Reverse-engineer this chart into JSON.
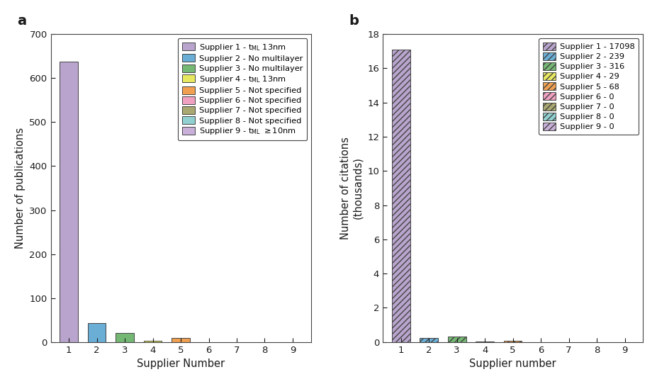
{
  "panel_a": {
    "values": [
      638,
      43,
      20,
      3,
      9,
      0,
      0,
      0,
      0
    ],
    "colors": [
      "#b8a4cc",
      "#6aaed6",
      "#74b874",
      "#e8e860",
      "#f0a050",
      "#f0a0c0",
      "#a8a870",
      "#90d0d0",
      "#c8b0d8"
    ],
    "xlabel": "Supplier Number",
    "ylabel": "Number of publications",
    "ylim": [
      0,
      700
    ],
    "yticks": [
      0,
      100,
      200,
      300,
      400,
      500,
      600,
      700
    ],
    "panel_label": "a"
  },
  "panel_b": {
    "values": [
      17.098,
      0.239,
      0.316,
      0.029,
      0.068,
      0,
      0,
      0,
      0
    ],
    "colors": [
      "#b8a4cc",
      "#6aaed6",
      "#74b874",
      "#e8e860",
      "#f0a050",
      "#f0a0c0",
      "#a8a870",
      "#90d0d0",
      "#c8b0d8"
    ],
    "xlabel": "Supplier number",
    "ylabel": "Number of citations (thousands)",
    "ylim": [
      0,
      18
    ],
    "yticks": [
      0,
      2,
      4,
      6,
      8,
      10,
      12,
      14,
      16,
      18
    ],
    "panel_label": "b"
  },
  "suppliers": [
    1,
    2,
    3,
    4,
    5,
    6,
    7,
    8,
    9
  ],
  "hatch": "////",
  "edge_color": "#444444",
  "font_color": "#1a1a1a",
  "bar_width": 0.65
}
